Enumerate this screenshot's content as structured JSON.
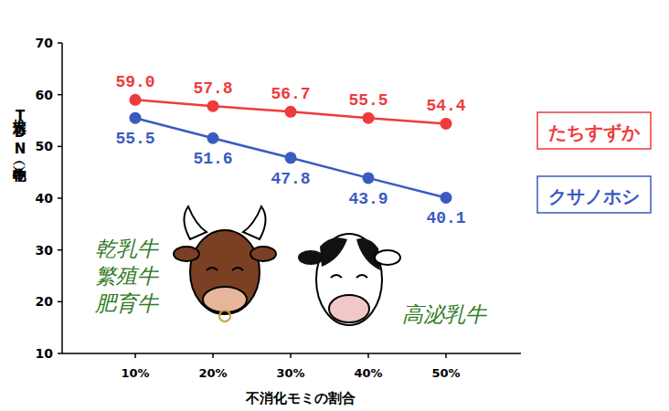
{
  "chart_data": {
    "type": "line",
    "y_label": "推定TDN（乾物中）",
    "x_label": "不消化モミの割合",
    "categories": [
      "10%",
      "20%",
      "30%",
      "40%",
      "50%"
    ],
    "series": [
      {
        "name": "たちすずか",
        "color": "#ee3b3b",
        "marker": "circle",
        "values": [
          59.0,
          57.8,
          56.7,
          55.5,
          54.4
        ],
        "value_labels": [
          "59.0",
          "57.8",
          "56.7",
          "55.5",
          "54.4"
        ]
      },
      {
        "name": "クサノホシ",
        "color": "#3a5bc0",
        "marker": "circle",
        "values": [
          55.5,
          51.6,
          47.8,
          43.9,
          40.1
        ],
        "value_labels": [
          "55.5",
          "51.6",
          "47.8",
          "43.9",
          "40.1"
        ]
      }
    ],
    "ylim": [
      10,
      70
    ],
    "yticks": [
      10,
      20,
      30,
      40,
      50,
      60,
      70
    ],
    "grid": false,
    "legend": "right",
    "data_labels": true,
    "annotations": [
      "乾乳牛",
      "繁殖牛",
      "肥育牛",
      "高泌乳牛"
    ]
  }
}
